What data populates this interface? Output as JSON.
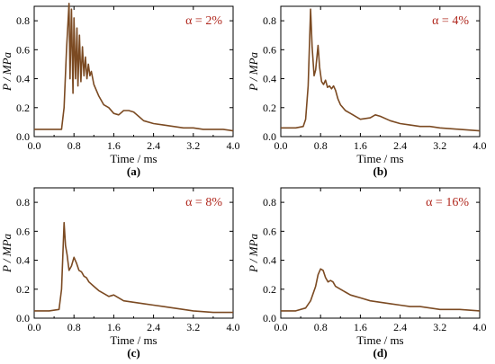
{
  "figure": {
    "background": "#ffffff",
    "axis_color": "#000000",
    "line_color": "#7b4a22",
    "annotation_color": "#b0281e"
  },
  "chart_data": [
    {
      "type": "line",
      "panel_label": "(a)",
      "annotation": "α = 2%",
      "xlabel": "Time / ms",
      "ylabel": "P / MPa",
      "xlim": [
        0.0,
        4.0
      ],
      "ylim": [
        0.0,
        0.9
      ],
      "xticks": [
        "0.0",
        "0.8",
        "1.6",
        "2.4",
        "3.2",
        "4.0"
      ],
      "yticks": [
        "0.0",
        "0.2",
        "0.4",
        "0.6",
        "0.8"
      ],
      "series": [
        {
          "color": "#7b4a22",
          "x": [
            0.0,
            0.3,
            0.55,
            0.6,
            0.65,
            0.7,
            0.72,
            0.75,
            0.78,
            0.8,
            0.83,
            0.86,
            0.88,
            0.91,
            0.94,
            0.97,
            1.0,
            1.03,
            1.06,
            1.09,
            1.12,
            1.15,
            1.2,
            1.3,
            1.4,
            1.5,
            1.6,
            1.7,
            1.8,
            1.9,
            2.0,
            2.1,
            2.2,
            2.4,
            2.6,
            2.8,
            3.0,
            3.2,
            3.4,
            3.6,
            3.8,
            4.0
          ],
          "y": [
            0.05,
            0.05,
            0.05,
            0.2,
            0.6,
            0.92,
            0.4,
            0.88,
            0.3,
            0.82,
            0.4,
            0.75,
            0.35,
            0.7,
            0.38,
            0.62,
            0.42,
            0.55,
            0.4,
            0.5,
            0.42,
            0.45,
            0.36,
            0.28,
            0.22,
            0.2,
            0.16,
            0.15,
            0.18,
            0.18,
            0.17,
            0.14,
            0.11,
            0.09,
            0.08,
            0.07,
            0.06,
            0.06,
            0.05,
            0.05,
            0.05,
            0.04
          ]
        }
      ]
    },
    {
      "type": "line",
      "panel_label": "(b)",
      "annotation": "α = 4%",
      "xlabel": "Time / ms",
      "ylabel": "P / MPa",
      "xlim": [
        0.0,
        4.0
      ],
      "ylim": [
        0.0,
        0.9
      ],
      "xticks": [
        "0.0",
        "0.8",
        "1.6",
        "2.4",
        "3.2",
        "4.0"
      ],
      "yticks": [
        "0.0",
        "0.2",
        "0.4",
        "0.6",
        "0.8"
      ],
      "series": [
        {
          "color": "#7b4a22",
          "x": [
            0.0,
            0.3,
            0.45,
            0.5,
            0.55,
            0.6,
            0.63,
            0.67,
            0.7,
            0.75,
            0.78,
            0.82,
            0.86,
            0.9,
            0.94,
            0.98,
            1.02,
            1.06,
            1.1,
            1.15,
            1.2,
            1.3,
            1.4,
            1.5,
            1.6,
            1.8,
            1.9,
            2.0,
            2.2,
            2.4,
            2.6,
            2.8,
            3.0,
            3.2,
            3.6,
            4.0
          ],
          "y": [
            0.06,
            0.06,
            0.07,
            0.12,
            0.35,
            0.88,
            0.62,
            0.42,
            0.46,
            0.63,
            0.48,
            0.38,
            0.36,
            0.39,
            0.34,
            0.35,
            0.33,
            0.35,
            0.32,
            0.26,
            0.22,
            0.18,
            0.16,
            0.14,
            0.12,
            0.13,
            0.15,
            0.14,
            0.11,
            0.09,
            0.08,
            0.07,
            0.07,
            0.06,
            0.05,
            0.04
          ]
        }
      ]
    },
    {
      "type": "line",
      "panel_label": "(c)",
      "annotation": "α = 8%",
      "xlabel": "Time / ms",
      "ylabel": "P / MPa",
      "xlim": [
        0.0,
        4.0
      ],
      "ylim": [
        0.0,
        0.9
      ],
      "xticks": [
        "0.0",
        "0.8",
        "1.6",
        "2.4",
        "3.2",
        "4.0"
      ],
      "yticks": [
        "0.0",
        "0.2",
        "0.4",
        "0.6",
        "0.8"
      ],
      "series": [
        {
          "color": "#7b4a22",
          "x": [
            0.0,
            0.3,
            0.5,
            0.55,
            0.6,
            0.63,
            0.66,
            0.7,
            0.75,
            0.8,
            0.85,
            0.9,
            0.95,
            1.0,
            1.05,
            1.1,
            1.2,
            1.3,
            1.4,
            1.5,
            1.6,
            1.7,
            1.8,
            2.0,
            2.2,
            2.4,
            2.6,
            2.8,
            3.0,
            3.2,
            3.6,
            4.0
          ],
          "y": [
            0.05,
            0.05,
            0.06,
            0.2,
            0.66,
            0.5,
            0.44,
            0.33,
            0.36,
            0.42,
            0.38,
            0.33,
            0.32,
            0.29,
            0.28,
            0.25,
            0.22,
            0.19,
            0.17,
            0.15,
            0.16,
            0.14,
            0.12,
            0.11,
            0.1,
            0.09,
            0.08,
            0.07,
            0.06,
            0.05,
            0.04,
            0.04
          ]
        }
      ]
    },
    {
      "type": "line",
      "panel_label": "(d)",
      "annotation": "α = 16%",
      "xlabel": "Time / ms",
      "ylabel": "P / MPa",
      "xlim": [
        0.0,
        4.0
      ],
      "ylim": [
        0.0,
        0.9
      ],
      "xticks": [
        "0.0",
        "0.8",
        "1.6",
        "2.4",
        "3.2",
        "4.0"
      ],
      "yticks": [
        "0.0",
        "0.2",
        "0.4",
        "0.6",
        "0.8"
      ],
      "series": [
        {
          "color": "#7b4a22",
          "x": [
            0.0,
            0.3,
            0.5,
            0.6,
            0.7,
            0.75,
            0.8,
            0.85,
            0.9,
            0.95,
            1.0,
            1.05,
            1.1,
            1.2,
            1.3,
            1.4,
            1.5,
            1.6,
            1.8,
            2.0,
            2.2,
            2.4,
            2.6,
            2.8,
            3.0,
            3.2,
            3.6,
            4.0
          ],
          "y": [
            0.05,
            0.05,
            0.07,
            0.12,
            0.22,
            0.3,
            0.34,
            0.33,
            0.28,
            0.25,
            0.26,
            0.25,
            0.22,
            0.2,
            0.18,
            0.16,
            0.15,
            0.14,
            0.12,
            0.11,
            0.1,
            0.09,
            0.08,
            0.08,
            0.07,
            0.06,
            0.06,
            0.05
          ]
        }
      ]
    }
  ]
}
